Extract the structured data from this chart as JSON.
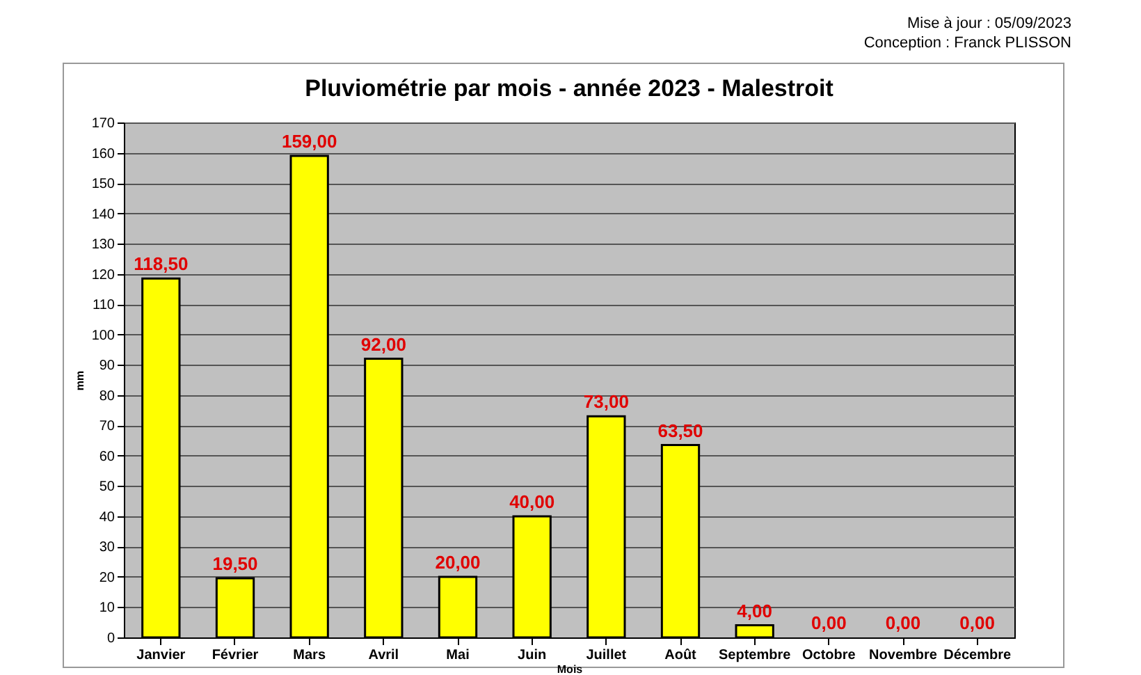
{
  "chart_data": {
    "type": "bar",
    "title": "Pluviométrie par mois - année 2023 - Malestroit",
    "xlabel": "Mois",
    "ylabel": "mm",
    "categories": [
      "Janvier",
      "Février",
      "Mars",
      "Avril",
      "Mai",
      "Juin",
      "Juillet",
      "Août",
      "Septembre",
      "Octobre",
      "Novembre",
      "Décembre"
    ],
    "values": [
      118.5,
      19.5,
      159,
      92,
      20,
      40,
      73,
      63.5,
      4,
      0,
      0,
      0
    ],
    "value_labels": [
      "118,50",
      "19,50",
      "159,00",
      "92,00",
      "20,00",
      "40,00",
      "73,00",
      "63,50",
      "4,00",
      "0,00",
      "0,00",
      "0,00"
    ],
    "color": "#ffff00",
    "ylim": [
      0,
      170
    ],
    "yticks": [
      0,
      10,
      20,
      30,
      40,
      50,
      60,
      70,
      80,
      90,
      100,
      110,
      120,
      130,
      140,
      150,
      160,
      170
    ],
    "grid": "y",
    "annotations": [
      "Mise à jour : 05/09/2023",
      "Conception : Franck PLISSON"
    ]
  }
}
